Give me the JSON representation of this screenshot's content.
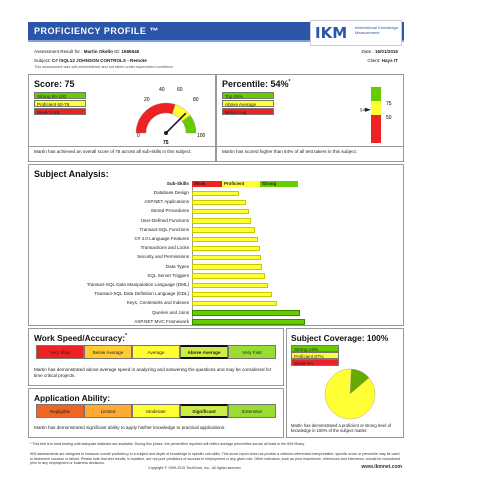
{
  "header": {
    "title": "PROFICIENCY PROFILE ™",
    "logo_text": "IKM",
    "logo_sub": "International Knowledge Measurement"
  },
  "meta": {
    "assessment_label": "Assessment Result for :",
    "candidate": "Martin Okello",
    "id_label": "ID:",
    "id": "1686646",
    "date_label": "Date :",
    "date": "16/01/2015",
    "subject_label": "Subject:",
    "subject": "C# /SQL12 JOHNSON CONTROLS - Remote",
    "client_label": "Client:",
    "client": "Hays IT",
    "note": "This assessment was self-administered and not taken under supervised conditions."
  },
  "score": {
    "title": "Score: 75",
    "legend": [
      {
        "label": "Strong 86-100",
        "color": "#66cc00"
      },
      {
        "label": "Proficient 60-79",
        "color": "#ffff33"
      },
      {
        "label": "Weak 0-59",
        "color": "#ee2222"
      }
    ],
    "gauge_ticks": [
      "20",
      "40",
      "60",
      "80",
      "0",
      "100"
    ],
    "value_label": "75",
    "value": 75,
    "text": "Martin has achieved an overall score of 75 across all sub-skills in this subject."
  },
  "percentile": {
    "title": "Percentile: 54%",
    "mark": "*",
    "legend": [
      {
        "label": "Top 25%",
        "color": "#66cc00"
      },
      {
        "label": "Above Average",
        "color": "#ffff33"
      },
      {
        "label": "Below Avg",
        "color": "#ee2222"
      }
    ],
    "scale_top": "75",
    "scale_mid": "50",
    "marker": "54",
    "value": 54,
    "text": "Martin has scored higher than 54% of all test takers in this subject."
  },
  "subject_analysis": {
    "title": "Subject Analysis:",
    "columns": [
      "Sub-Skills",
      "Weak",
      "Proficient",
      "Strong"
    ],
    "rows": [
      {
        "name": "Database Design",
        "value": 0.35,
        "tier": "proficient"
      },
      {
        "name": "ASP.NET Applications",
        "value": 0.4,
        "tier": "proficient"
      },
      {
        "name": "Stored Procedures",
        "value": 0.42,
        "tier": "proficient"
      },
      {
        "name": "User-Defined Functions",
        "value": 0.44,
        "tier": "proficient"
      },
      {
        "name": "Transact-SQL Functions",
        "value": 0.47,
        "tier": "proficient"
      },
      {
        "name": "C# 4.0 Language Features",
        "value": 0.49,
        "tier": "proficient"
      },
      {
        "name": "Transactions and Locks",
        "value": 0.5,
        "tier": "proficient"
      },
      {
        "name": "Security and Permissions",
        "value": 0.51,
        "tier": "proficient"
      },
      {
        "name": "Data Types",
        "value": 0.52,
        "tier": "proficient"
      },
      {
        "name": "SQL Server Triggers",
        "value": 0.54,
        "tier": "proficient"
      },
      {
        "name": "Transact-SQL Data Manipulation Language (DML)",
        "value": 0.56,
        "tier": "proficient"
      },
      {
        "name": "Transact-SQL Data Definition Language (DDL)",
        "value": 0.59,
        "tier": "proficient"
      },
      {
        "name": "Keys, Constraints and Indexes",
        "value": 0.63,
        "tier": "proficient"
      },
      {
        "name": "Queries and Joins",
        "value": 0.8,
        "tier": "strong"
      },
      {
        "name": "ASP.NET MVC Framework",
        "value": 0.84,
        "tier": "strong"
      }
    ]
  },
  "speed": {
    "title": "Work Speed/Accuracy:",
    "mark": "*",
    "cells": [
      {
        "label": "Very Slow",
        "color": "#ee2222"
      },
      {
        "label": "Below Average",
        "color": "#ffcc33"
      },
      {
        "label": "Average",
        "color": "#ffff33"
      },
      {
        "label": "Above Average",
        "color": "#ccee44",
        "selected": true
      },
      {
        "label": "Very Fast",
        "color": "#99dd33"
      }
    ],
    "text": "Martin has demonstrated above average speed in analyzing and answering the questions and may be considered for time critical projects."
  },
  "coverage": {
    "title": "Subject Coverage: 100%",
    "legend": [
      {
        "label": "Strong 13%",
        "color": "#66cc00"
      },
      {
        "label": "Proficient 87%",
        "color": "#ffff33"
      },
      {
        "label": "Weak 0%",
        "color": "#ee2222"
      }
    ],
    "pie": [
      {
        "name": "Strong",
        "value": 13,
        "color": "#66aa00"
      },
      {
        "name": "Proficient",
        "value": 87,
        "color": "#ffff33"
      },
      {
        "name": "Weak",
        "value": 0,
        "color": "#ee2222"
      }
    ],
    "text": "Martin has demonstrated a proficient or strong level of knowledge in 100% of the subject matter."
  },
  "ability": {
    "title": "Application Ability:",
    "cells": [
      {
        "label": "Negligible",
        "color": "#ee6622"
      },
      {
        "label": "Limited",
        "color": "#ffaa33"
      },
      {
        "label": "Moderate",
        "color": "#ffff33"
      },
      {
        "label": "Significant",
        "color": "#ccee44",
        "selected": true
      },
      {
        "label": "Extensive",
        "color": "#99dd33"
      }
    ],
    "text": "Martin has demonstrated significant ability to apply his/her knowledge to practical applications."
  },
  "footer": {
    "line1": "* This test is in beta testing until adequate statistics are available. During this phase, the percentiles reported will reflect average percentiles across all tests in the IKM library.",
    "line2": "IKM assessments are designed to measure overall proficiency in a subject and depth of knowledge in specific sub-skills. This score report does not provide a criterion-referenced interpretation; specific score or percentile may be used to determine success or failure. Please note that test results, in isolation, are not pure predictors of success in employment or any given role. Other indicators, such as prior experience, references and interviews, should be considered prior to any employment or business decisions.",
    "copyright": "Copyright © 1999-2015 TechChek, Inc., All rights reserved",
    "url": "www.ikmnet.com"
  }
}
